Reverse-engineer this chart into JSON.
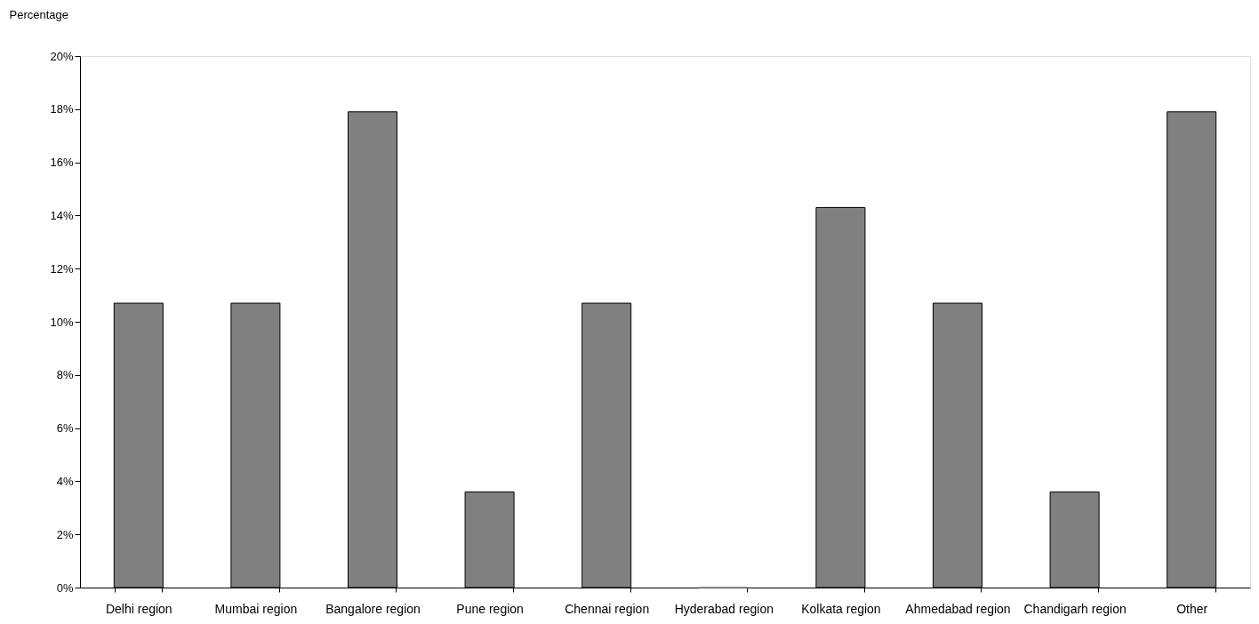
{
  "chart_data": {
    "type": "bar",
    "ylabel": "Percentage",
    "categories": [
      "Delhi region",
      "Mumbai region",
      "Bangalore region",
      "Pune region",
      "Chennai region",
      "Hyderabad region",
      "Kolkata region",
      "Ahmedabad region",
      "Chandigarh region",
      "Other"
    ],
    "values": [
      10.7,
      10.7,
      17.9,
      3.6,
      10.7,
      0,
      14.3,
      10.7,
      3.6,
      17.9
    ],
    "color": "#808080",
    "ylim": [
      0,
      20
    ],
    "yticks": [
      {
        "value": 0,
        "label": "0%"
      },
      {
        "value": 2,
        "label": "2%"
      },
      {
        "value": 4,
        "label": "4%"
      },
      {
        "value": 6,
        "label": "6%"
      },
      {
        "value": 8,
        "label": "8%"
      },
      {
        "value": 10,
        "label": "10%"
      },
      {
        "value": 12,
        "label": "12%"
      },
      {
        "value": 14,
        "label": "14%"
      },
      {
        "value": 16,
        "label": "16%"
      },
      {
        "value": 18,
        "label": "18%"
      },
      {
        "value": 20,
        "label": "20%"
      }
    ],
    "grid": false
  }
}
